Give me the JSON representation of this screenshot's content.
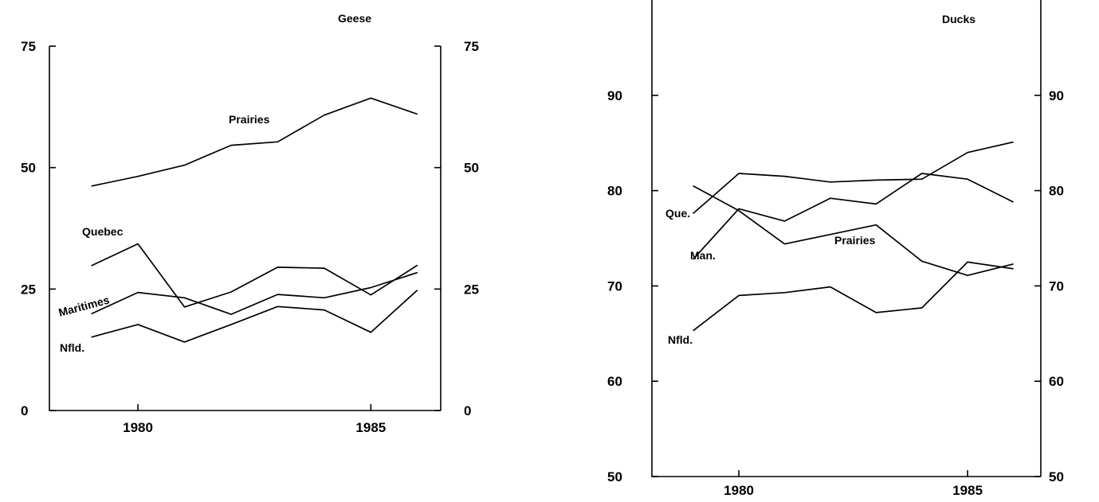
{
  "chart_data": [
    {
      "type": "line",
      "title": "Geese",
      "x": [
        1979,
        1980,
        1981,
        1982,
        1983,
        1984,
        1985,
        1986
      ],
      "xticks": [
        1980,
        1985
      ],
      "xlim": [
        1978.1,
        1986.5
      ],
      "ylim": [
        0,
        75
      ],
      "yticks": [
        0,
        25,
        50,
        75
      ],
      "series": [
        {
          "name": "Prairies",
          "values": [
            46.2,
            48.2,
            50.5,
            54.6,
            55.3,
            60.8,
            64.3,
            61.0
          ]
        },
        {
          "name": "Quebec",
          "values": [
            29.8,
            34.3,
            21.3,
            24.4,
            29.5,
            29.3,
            23.8,
            29.9
          ]
        },
        {
          "name": "Maritimes",
          "values": [
            19.9,
            24.3,
            23.2,
            19.8,
            23.9,
            23.2,
            25.3,
            28.4
          ]
        },
        {
          "name": "Nfld.",
          "values": [
            15.1,
            17.7,
            14.1,
            17.7,
            21.4,
            20.7,
            16.1,
            24.8
          ]
        }
      ]
    },
    {
      "type": "line",
      "title": "Ducks",
      "x": [
        1979,
        1980,
        1981,
        1982,
        1983,
        1984,
        1985,
        1986
      ],
      "xticks": [
        1980,
        1985
      ],
      "xlim": [
        1978.1,
        1986.6
      ],
      "ylim": [
        50,
        100
      ],
      "yticks": [
        50,
        60,
        70,
        80,
        90
      ],
      "series": [
        {
          "name": "Que.",
          "values": [
            77.6,
            81.8,
            81.5,
            80.9,
            81.1,
            81.2,
            84.0,
            85.1
          ]
        },
        {
          "name": "Prairies",
          "values": [
            80.5,
            77.9,
            74.4,
            75.4,
            76.4,
            72.6,
            71.1,
            72.3
          ]
        },
        {
          "name": "Man.",
          "values": [
            72.8,
            78.1,
            76.8,
            79.2,
            78.6,
            81.8,
            81.2,
            78.8
          ]
        },
        {
          "name": "Nfld.",
          "values": [
            65.3,
            69.0,
            69.3,
            69.9,
            67.2,
            67.7,
            72.5,
            71.8
          ]
        }
      ]
    }
  ]
}
